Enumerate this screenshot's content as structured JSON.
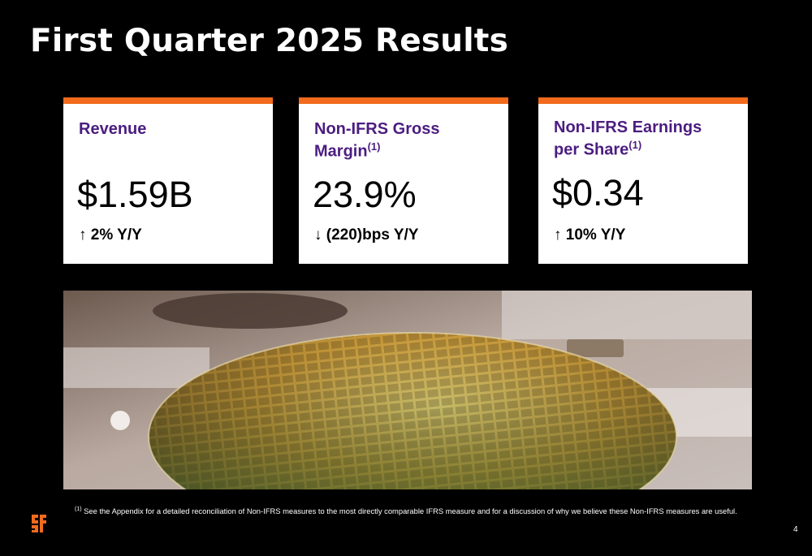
{
  "title": "First Quarter 2025 Results",
  "accent_color": "#f26b1d",
  "heading_color": "#4b1d80",
  "cards": [
    {
      "title": "Revenue",
      "footnote_mark": "",
      "title_line2": "",
      "value": "$1.59B",
      "change_arrow": "↑",
      "change": "2% Y/Y"
    },
    {
      "title": "Non-IFRS Gross",
      "title_line2": "Margin",
      "footnote_mark": "(1)",
      "value": "23.9%",
      "change_arrow": "↓",
      "change": "(220)bps Y/Y"
    },
    {
      "title": "Non-IFRS Earnings",
      "title_line2": "per Share",
      "footnote_mark": "(1)",
      "value": "$0.34",
      "change_arrow": "↑",
      "change": "10% Y/Y"
    }
  ],
  "footnote": {
    "mark": "(1)",
    "text": "See the Appendix for a detailed reconciliation of Non-IFRS measures to the most directly comparable IFRS measure and for a discussion of why we believe these Non-IFRS measures are useful."
  },
  "page_number": "4",
  "photo_description_icon": "silicon-wafer-photo",
  "logo_icon": "gf-logo-icon"
}
